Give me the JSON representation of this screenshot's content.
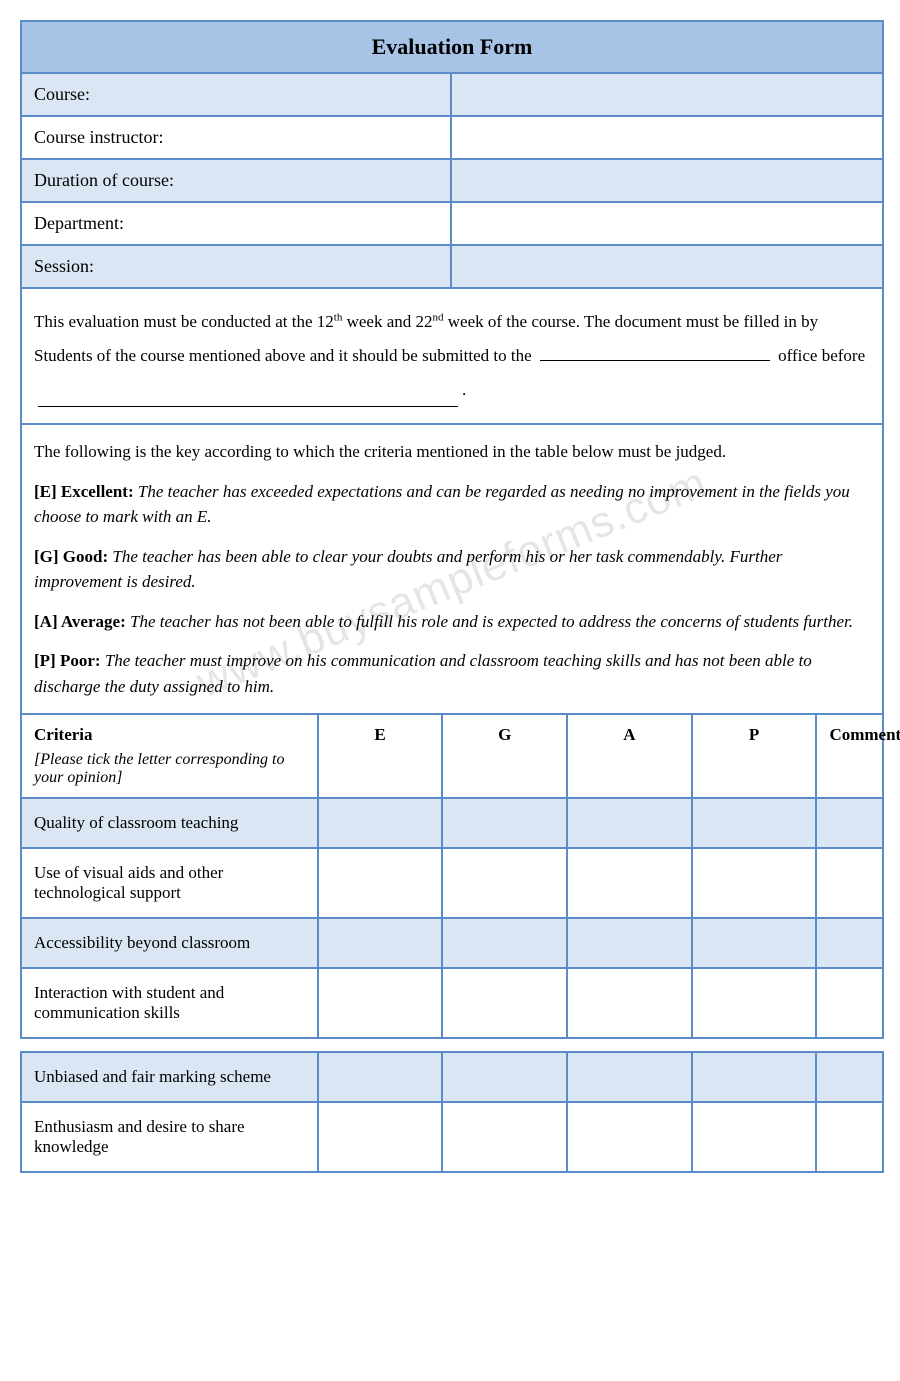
{
  "title": "Evaluation Form",
  "info": [
    {
      "label": "Course:",
      "shaded": true
    },
    {
      "label": "Course instructor:",
      "shaded": false
    },
    {
      "label": "Duration of course:",
      "shaded": true
    },
    {
      "label": "Department:",
      "shaded": false
    },
    {
      "label": "Session:",
      "shaded": true
    }
  ],
  "instruction": {
    "pre": "This evaluation must be conducted at the 12",
    "sup1": "th",
    "mid1": " week and 22",
    "sup2": "nd",
    "mid2": " week of the course. The document must be filled in by",
    "line2a": "Students of the course mentioned above and it should be submitted to the ",
    "line2b": " office before",
    "line3_end": "."
  },
  "key_intro": "The following is the key according to which the criteria mentioned in the table below must be judged.",
  "keys": [
    {
      "code": "[E] Excellent:",
      "desc": "The teacher has exceeded expectations and can be regarded as needing no improvement in the fields you choose to mark with an E."
    },
    {
      "code": "[G] Good:",
      "desc": "The teacher has been able to clear your doubts and perform his or her task commendably. Further improvement is desired."
    },
    {
      "code": "[A] Average:",
      "desc": "The teacher has not been able to fulfill his role and is expected to address the concerns of students further."
    },
    {
      "code": "[P] Poor:",
      "desc": "The teacher must improve on his communication and classroom teaching skills and has not been able to discharge the duty assigned to him."
    }
  ],
  "watermark": "www.buysampleforms.com",
  "criteria_header": {
    "title": "Criteria",
    "subtitle": "[Please tick the letter corresponding to your opinion]",
    "e": "E",
    "g": "G",
    "a": "A",
    "p": "P",
    "comment": "Comment"
  },
  "criteria_rows_a": [
    {
      "label": "Quality of classroom teaching",
      "shaded": true
    },
    {
      "label": "Use of visual aids and other technological support",
      "shaded": false
    },
    {
      "label": "Accessibility beyond classroom",
      "shaded": true
    },
    {
      "label": "Interaction with student and communication skills",
      "shaded": false
    }
  ],
  "criteria_rows_b": [
    {
      "label": "Unbiased and fair marking scheme",
      "shaded": true
    },
    {
      "label": "Enthusiasm and desire to share knowledge",
      "shaded": false
    }
  ],
  "colors": {
    "border": "#5b8bc9",
    "header_bg": "#a7c3e6",
    "shaded_bg": "#dae6f3",
    "white": "#ffffff"
  }
}
